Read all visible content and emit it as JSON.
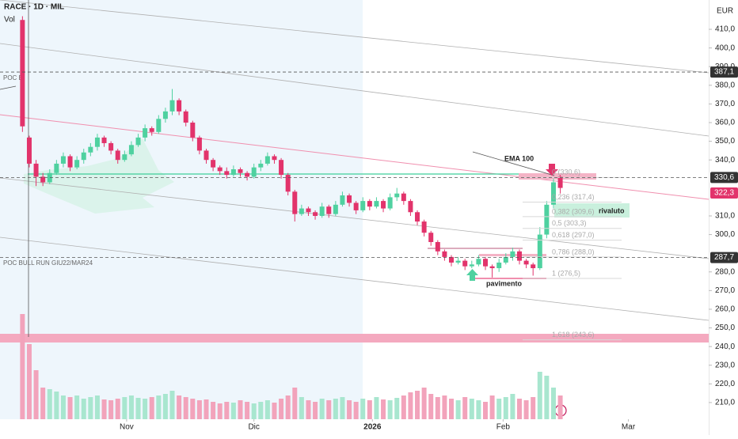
{
  "header": {
    "title": "RACE · 1D · MIL",
    "volume_label": "Vol",
    "currency": "EUR"
  },
  "chart_data": {
    "type": "candlestick",
    "ylim": [
      205.3,
      425.7
    ],
    "yticks": [
      {
        "value": 410,
        "label": "410,0"
      },
      {
        "value": 400,
        "label": "400,0"
      },
      {
        "value": 390,
        "label": "390,0"
      },
      {
        "value": 380,
        "label": "380,0"
      },
      {
        "value": 370,
        "label": "370,0"
      },
      {
        "value": 360,
        "label": "360,0"
      },
      {
        "value": 350,
        "label": "350,0"
      },
      {
        "value": 340,
        "label": "340,0"
      },
      {
        "value": 310,
        "label": "310,0"
      },
      {
        "value": 300,
        "label": "300,0"
      },
      {
        "value": 280,
        "label": "280,0"
      },
      {
        "value": 270,
        "label": "270,0"
      },
      {
        "value": 260,
        "label": "260,0"
      },
      {
        "value": 250,
        "label": "250,0"
      },
      {
        "value": 240,
        "label": "240,0"
      },
      {
        "value": 230,
        "label": "230,0"
      },
      {
        "value": 220,
        "label": "220,0"
      },
      {
        "value": 210,
        "label": "210,0"
      }
    ],
    "xlim": [
      -3.3,
      100.8
    ],
    "xticks": [
      {
        "value": 15.3,
        "label": "Nov"
      },
      {
        "value": 34,
        "label": "Dic"
      },
      {
        "value": 51.4,
        "label": "2026"
      },
      {
        "value": 70.6,
        "label": "Feb"
      },
      {
        "value": 89,
        "label": "Mar"
      }
    ],
    "up_color": "#4fd1a0",
    "down_color": "#e2336b",
    "vol_up_color": "#a8e6cf",
    "vol_down_color": "#f2a3bb",
    "ohlc": [
      [
        415,
        417,
        355,
        358
      ],
      [
        352,
        353,
        336,
        338
      ],
      [
        338,
        340,
        326,
        331
      ],
      [
        331,
        333,
        326,
        328
      ],
      [
        328,
        335,
        327,
        333
      ],
      [
        333,
        340,
        332,
        338
      ],
      [
        338,
        344,
        336,
        342
      ],
      [
        342,
        343,
        334,
        336
      ],
      [
        336,
        342,
        335,
        340
      ],
      [
        340,
        346,
        338,
        344
      ],
      [
        344,
        349,
        342,
        347
      ],
      [
        347,
        354,
        345,
        352
      ],
      [
        352,
        353,
        347,
        349
      ],
      [
        349,
        350,
        343,
        345
      ],
      [
        345,
        346,
        338,
        340
      ],
      [
        340,
        345,
        339,
        343
      ],
      [
        343,
        350,
        342,
        348
      ],
      [
        348,
        354,
        347,
        352
      ],
      [
        352,
        359,
        350,
        357
      ],
      [
        357,
        358,
        353,
        355
      ],
      [
        355,
        364,
        354,
        362
      ],
      [
        362,
        368,
        360,
        366
      ],
      [
        366,
        378,
        364,
        372
      ],
      [
        372,
        373,
        364,
        366
      ],
      [
        366,
        367,
        358,
        360
      ],
      [
        360,
        361,
        350,
        352
      ],
      [
        352,
        353,
        343,
        345
      ],
      [
        345,
        346,
        338,
        340
      ],
      [
        340,
        341,
        334,
        336
      ],
      [
        336,
        337,
        332,
        334
      ],
      [
        334,
        336,
        330,
        332
      ],
      [
        332,
        337,
        331,
        335
      ],
      [
        335,
        336,
        331,
        333
      ],
      [
        333,
        334,
        329,
        331
      ],
      [
        331,
        338,
        330,
        336
      ],
      [
        336,
        340,
        334,
        338
      ],
      [
        338,
        344,
        337,
        342
      ],
      [
        342,
        343,
        338,
        340
      ],
      [
        340,
        341,
        330,
        332
      ],
      [
        332,
        333,
        321,
        323
      ],
      [
        323,
        324,
        307,
        311
      ],
      [
        311,
        316,
        310,
        314
      ],
      [
        314,
        315,
        310,
        312
      ],
      [
        312,
        313,
        308,
        310
      ],
      [
        310,
        317,
        309,
        315
      ],
      [
        315,
        316,
        309,
        311
      ],
      [
        311,
        318,
        310,
        316
      ],
      [
        316,
        323,
        315,
        321
      ],
      [
        321,
        322,
        315,
        317
      ],
      [
        317,
        318,
        311,
        313
      ],
      [
        313,
        320,
        312,
        318
      ],
      [
        318,
        319,
        313,
        315
      ],
      [
        315,
        320,
        314,
        318
      ],
      [
        318,
        319,
        312,
        314
      ],
      [
        314,
        322,
        313,
        320
      ],
      [
        320,
        325,
        318,
        322
      ],
      [
        322,
        323,
        316,
        318
      ],
      [
        318,
        319,
        310,
        312
      ],
      [
        312,
        313,
        305,
        307
      ],
      [
        307,
        308,
        299,
        301
      ],
      [
        301,
        302,
        294,
        296
      ],
      [
        296,
        297,
        289,
        291
      ],
      [
        291,
        292,
        286,
        288
      ],
      [
        288,
        289,
        283,
        285
      ],
      [
        285,
        288,
        284,
        286
      ],
      [
        286,
        287,
        281,
        283
      ],
      [
        283,
        286,
        282,
        284
      ],
      [
        284,
        289,
        283,
        287
      ],
      [
        287,
        288,
        281,
        283
      ],
      [
        283,
        284,
        277,
        282
      ],
      [
        282,
        287,
        280,
        285
      ],
      [
        285,
        290,
        284,
        288
      ],
      [
        288,
        293,
        286,
        291
      ],
      [
        291,
        292,
        284,
        286
      ],
      [
        286,
        287,
        282,
        284
      ],
      [
        284,
        285,
        278,
        282
      ],
      [
        282,
        304,
        281,
        300
      ],
      [
        300,
        318,
        298,
        316
      ],
      [
        316,
        330,
        314,
        328
      ],
      [
        331,
        332,
        322,
        325
      ]
    ],
    "vlim": [
      0,
      530
    ],
    "volume": [
      133,
      95,
      62,
      40,
      38,
      35,
      30,
      28,
      30,
      26,
      28,
      30,
      25,
      24,
      26,
      28,
      30,
      27,
      26,
      28,
      30,
      32,
      36,
      30,
      28,
      26,
      24,
      25,
      22,
      20,
      22,
      21,
      24,
      22,
      20,
      22,
      24,
      21,
      26,
      30,
      40,
      28,
      24,
      22,
      26,
      24,
      26,
      28,
      24,
      22,
      26,
      24,
      28,
      25,
      24,
      27,
      30,
      34,
      36,
      40,
      32,
      28,
      30,
      26,
      24,
      28,
      26,
      24,
      22,
      30,
      26,
      28,
      32,
      26,
      24,
      28,
      60,
      55,
      40,
      30
    ],
    "levels": [
      {
        "value": 387.1,
        "label": "387,1",
        "color": "#333333"
      },
      {
        "value": 330.6,
        "label": "330,6",
        "color": "#333333"
      },
      {
        "value": 322.3,
        "label": "322,3",
        "color": "#e2336b"
      },
      {
        "value": 287.7,
        "label": "287,7",
        "color": "#333333"
      }
    ],
    "fib": [
      {
        "value": 330.6,
        "label": "0 (330,6)"
      },
      {
        "value": 317.4,
        "label": "0,236 (317,4)"
      },
      {
        "value": 309.6,
        "label": "0,382 (309,6)"
      },
      {
        "value": 303.3,
        "label": "0,5 (303,3)"
      },
      {
        "value": 297,
        "label": "0,618 (297,0)"
      },
      {
        "value": 288,
        "label": "0,786 (288,0)"
      },
      {
        "value": 276.5,
        "label": "1 (276,5)"
      },
      {
        "value": 243.6,
        "label": "1,618 (243,6)"
      }
    ],
    "annotations": {
      "ema": "EMA 100",
      "rivaluto": "rivaluto",
      "pavimento": "pavimento",
      "poc_bull": "POC BULL RUN GIU22/MAR24",
      "poc_b": "POC B"
    }
  }
}
